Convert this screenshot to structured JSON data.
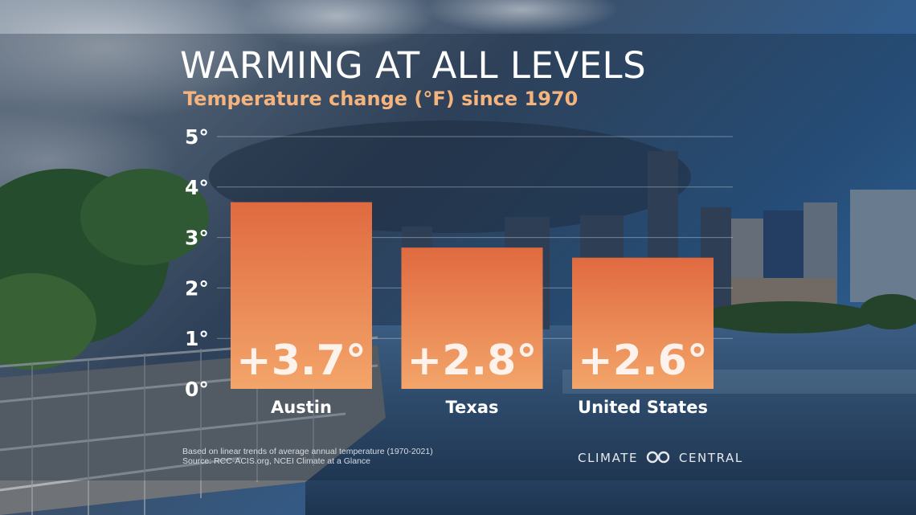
{
  "colors": {
    "bar_top": "#e06a40",
    "bar_bottom": "#f3a56a",
    "title": "#ffffff",
    "subtitle": "#f5b47e"
  },
  "header": {
    "title": "WARMING AT ALL LEVELS",
    "subtitle": "Temperature change (°F) since 1970"
  },
  "chart_data": {
    "type": "bar",
    "title": "WARMING AT ALL LEVELS",
    "subtitle": "Temperature change (°F) since 1970",
    "categories": [
      "Austin",
      "Texas",
      "United States"
    ],
    "values": [
      3.7,
      2.8,
      2.6
    ],
    "value_labels": [
      "+3.7°",
      "+2.8°",
      "+2.6°"
    ],
    "ylim": [
      0,
      5
    ],
    "yticks": [
      0,
      1,
      2,
      3,
      4,
      5
    ],
    "ytick_labels": [
      "0°",
      "1°",
      "2°",
      "3°",
      "4°",
      "5°"
    ],
    "grid": true
  },
  "footer": {
    "note_line1": "Based on linear trends of average annual temperature (1970-2021)",
    "note_line2": "Source: RCC-ACIS.org, NCEI Climate at a Glance",
    "brand_left": "CLIMATE",
    "brand_right": "CENTRAL",
    "logo_icon": "climate-central-logo-icon"
  }
}
